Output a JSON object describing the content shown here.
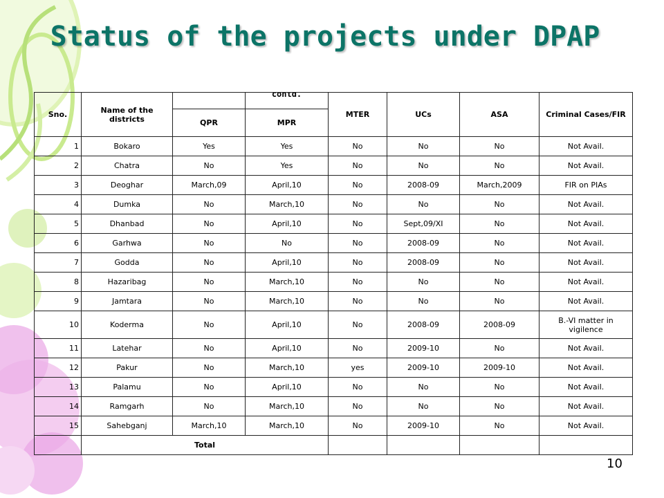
{
  "slide": {
    "title": "Status of the projects under DPAP",
    "page_number": "10",
    "colors": {
      "title": "#0c7467",
      "accent_green": "#b7e07a",
      "accent_pink": "#e9a5e5"
    }
  },
  "table": {
    "headers": {
      "sno": "Sno.",
      "district": "Name of the districts",
      "group_label": "contd.",
      "qpr": "QPR",
      "mpr": "MPR",
      "mter": "MTER",
      "ucs": "UCs",
      "asa": "ASA",
      "criminal": "Criminal Cases/FIR"
    },
    "rows": [
      [
        "1",
        "Bokaro",
        "Yes",
        "Yes",
        "No",
        "No",
        "No",
        "Not Avail."
      ],
      [
        "2",
        "Chatra",
        "No",
        "Yes",
        "No",
        "No",
        "No",
        "Not Avail."
      ],
      [
        "3",
        "Deoghar",
        "March,09",
        "April,10",
        "No",
        "2008-09",
        "March,2009",
        "FIR on PIAs"
      ],
      [
        "4",
        "Dumka",
        "No",
        "March,10",
        "No",
        "No",
        "No",
        "Not Avail."
      ],
      [
        "5",
        "Dhanbad",
        "No",
        "April,10",
        "No",
        "Sept,09/XI",
        "No",
        "Not Avail."
      ],
      [
        "6",
        "Garhwa",
        "No",
        "No",
        "No",
        "2008-09",
        "No",
        "Not Avail."
      ],
      [
        "7",
        "Godda",
        "No",
        "April,10",
        "No",
        "2008-09",
        "No",
        "Not Avail."
      ],
      [
        "8",
        "Hazaribag",
        "No",
        "March,10",
        "No",
        "No",
        "No",
        "Not Avail."
      ],
      [
        "9",
        "Jamtara",
        "No",
        "March,10",
        "No",
        "No",
        "No",
        "Not Avail."
      ],
      [
        "10",
        "Koderma",
        "No",
        "April,10",
        "No",
        "2008-09",
        "2008-09",
        "B.-VI matter in vigilence"
      ],
      [
        "11",
        "Latehar",
        "No",
        "April,10",
        "No",
        "2009-10",
        "No",
        "Not Avail."
      ],
      [
        "12",
        "Pakur",
        "No",
        "March,10",
        "yes",
        "2009-10",
        "2009-10",
        "Not Avail."
      ],
      [
        "13",
        "Palamu",
        "No",
        "April,10",
        "No",
        "No",
        "No",
        "Not Avail."
      ],
      [
        "14",
        "Ramgarh",
        "No",
        "March,10",
        "No",
        "No",
        "No",
        "Not Avail."
      ],
      [
        "15",
        "Sahebganj",
        "March,10",
        "March,10",
        "No",
        "2009-10",
        "No",
        "Not Avail."
      ]
    ],
    "total_label": "Total"
  }
}
